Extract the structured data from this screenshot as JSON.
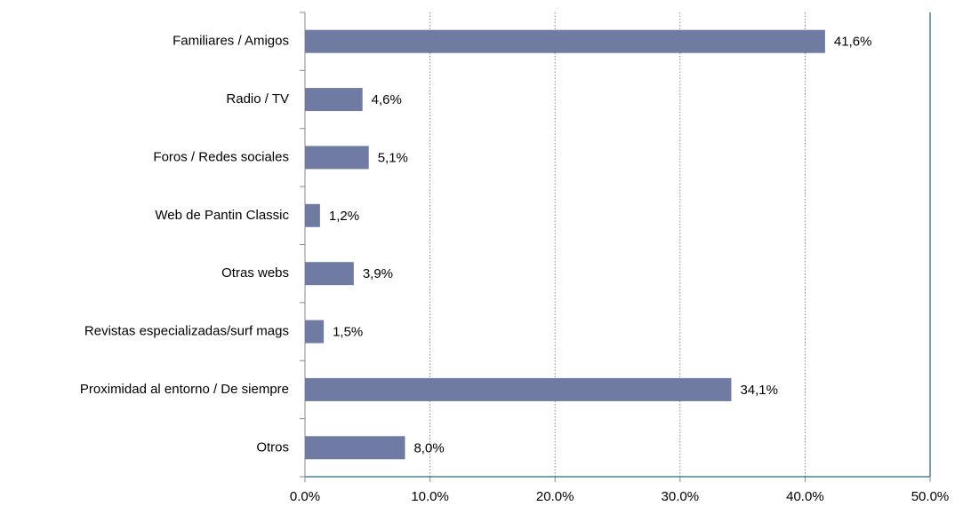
{
  "chart_data": {
    "type": "bar",
    "orientation": "horizontal",
    "categories": [
      "Familiares / Amigos",
      "Radio / TV",
      "Foros / Redes sociales",
      "Web de Pantin Classic",
      "Otras webs",
      "Revistas especializadas/surf mags",
      "Proximidad al entorno / De siempre",
      "Otros"
    ],
    "values": [
      41.6,
      4.6,
      5.1,
      1.2,
      3.9,
      1.5,
      34.1,
      8.0
    ],
    "value_labels": [
      "41,6%",
      "4,6%",
      "5,1%",
      "1,2%",
      "3,9%",
      "1,5%",
      "34,1%",
      "8,0%"
    ],
    "color": "#6f7ba3",
    "xlim": [
      0,
      50
    ],
    "xticks": [
      {
        "value": 0,
        "label": "0.0%"
      },
      {
        "value": 10,
        "label": "10.0%"
      },
      {
        "value": 20,
        "label": "20.0%"
      },
      {
        "value": 30,
        "label": "30.0%"
      },
      {
        "value": 40,
        "label": "40.0%"
      },
      {
        "value": 50,
        "label": "50.0%"
      }
    ],
    "grid": true
  }
}
